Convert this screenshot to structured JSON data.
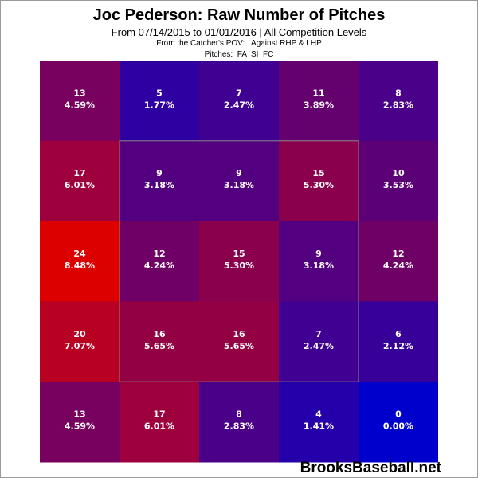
{
  "header": {
    "title": "Joc Pederson: Raw Number of Pitches",
    "subtitle": "From 07/14/2015 to 01/01/2016 | All Competition Levels",
    "pov": "From the Catcher's POV:   Against RHP & LHP",
    "pitches": "Pitches:  FA  SI  FC"
  },
  "watermark": "BrooksBaseball.net",
  "colors": {
    "min": "#0000cc",
    "max": "#dd0000",
    "strike_zone_border": "#888888"
  },
  "chart_data": {
    "type": "heatmap",
    "title": "Joc Pederson: Raw Number of Pitches",
    "rows": 5,
    "cols": 5,
    "strike_zone": "inner 3x3",
    "counts": [
      [
        13,
        5,
        7,
        11,
        8
      ],
      [
        17,
        9,
        9,
        15,
        10
      ],
      [
        24,
        12,
        15,
        9,
        12
      ],
      [
        20,
        16,
        16,
        7,
        6
      ],
      [
        13,
        17,
        8,
        4,
        0
      ]
    ],
    "percents": [
      [
        "4.59%",
        "1.77%",
        "2.47%",
        "3.89%",
        "2.83%"
      ],
      [
        "6.01%",
        "3.18%",
        "3.18%",
        "5.30%",
        "3.53%"
      ],
      [
        "8.48%",
        "4.24%",
        "5.30%",
        "3.18%",
        "4.24%"
      ],
      [
        "7.07%",
        "5.65%",
        "5.65%",
        "2.47%",
        "2.12%"
      ],
      [
        "4.59%",
        "6.01%",
        "2.83%",
        "1.41%",
        "0.00%"
      ]
    ]
  }
}
